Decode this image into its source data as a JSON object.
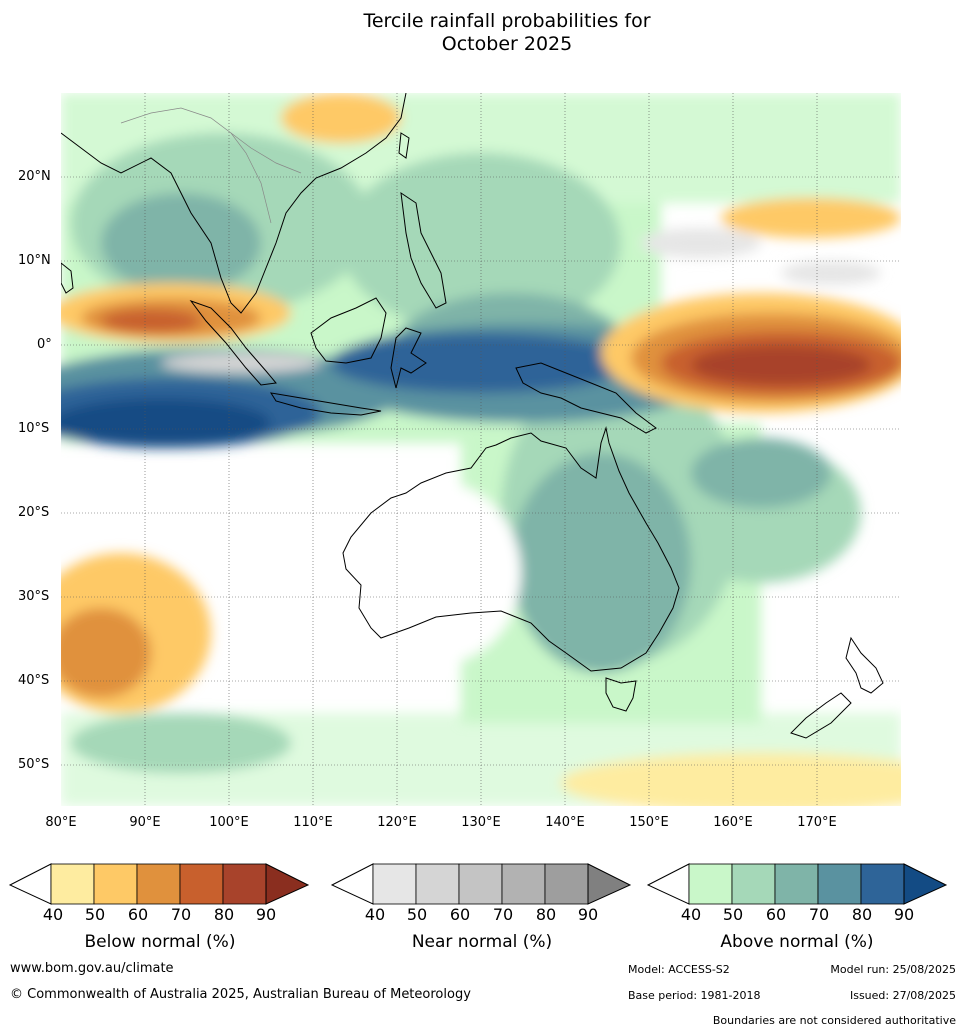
{
  "title_line1": "Tercile rainfall probabilities for",
  "title_line2": "October 2025",
  "map": {
    "lat_labels": [
      "20°N",
      "10°N",
      "0°",
      "10°S",
      "20°S",
      "30°S",
      "40°S",
      "50°S"
    ],
    "lon_labels": [
      "80°E",
      "90°E",
      "100°E",
      "110°E",
      "120°E",
      "130°E",
      "140°E",
      "150°E",
      "160°E",
      "170°E"
    ],
    "lon_range": [
      80,
      180
    ],
    "lat_range": [
      -55,
      30
    ]
  },
  "legends": [
    {
      "title": "Below normal (%)",
      "ticks": [
        "40",
        "50",
        "60",
        "70",
        "80",
        "90"
      ],
      "colors": [
        "#ffffff",
        "#feeca0",
        "#fec966",
        "#e0913d",
        "#c8602d",
        "#a8432b",
        "#8a2e1f"
      ]
    },
    {
      "title": "Near normal (%)",
      "ticks": [
        "40",
        "50",
        "60",
        "70",
        "80",
        "90"
      ],
      "colors": [
        "#ffffff",
        "#e6e6e6",
        "#d5d5d5",
        "#c4c4c4",
        "#b2b2b2",
        "#9e9e9e",
        "#808080"
      ]
    },
    {
      "title": "Above normal (%)",
      "ticks": [
        "40",
        "50",
        "60",
        "70",
        "80",
        "90"
      ],
      "colors": [
        "#ffffff",
        "#c9f7c9",
        "#a5d8b8",
        "#7fb4a8",
        "#5a92a0",
        "#2e6498",
        "#134b84"
      ]
    }
  ],
  "footer": {
    "website": "www.bom.gov.au/climate",
    "copyright": "© Commonwealth of Australia 2025, Australian Bureau of Meteorology",
    "model": "Model: ACCESS-S2",
    "model_run": "Model run: 25/08/2025",
    "base_period": "Base period: 1981-2018",
    "issued": "Issued: 27/08/2025",
    "boundaries": "Boundaries are not considered authoritative"
  }
}
